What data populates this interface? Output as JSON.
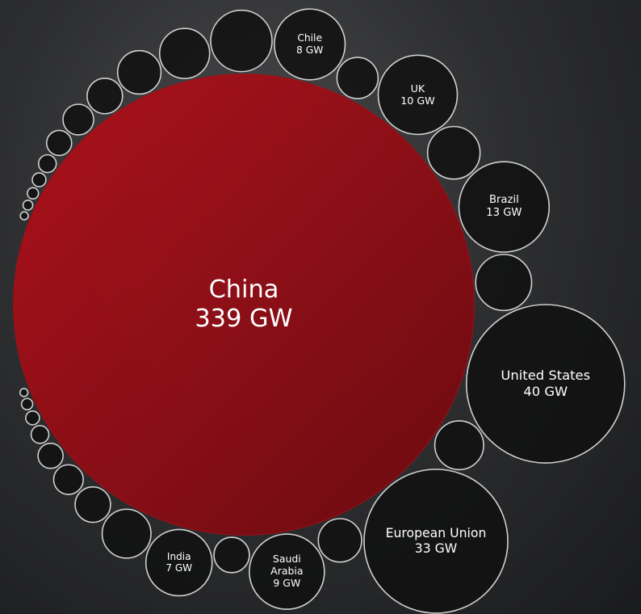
{
  "chart_data": {
    "type": "bubble",
    "categories": [
      "China",
      null,
      null,
      null,
      null,
      null,
      null,
      null,
      null,
      null,
      null,
      null,
      "Chile",
      null,
      "UK",
      null,
      "Brazil",
      null,
      "United States",
      null,
      "European Union",
      null,
      "Saudi Arabia",
      null,
      "India",
      null,
      null,
      null,
      null,
      null,
      null,
      null,
      null
    ],
    "values": [
      339,
      0.1,
      0.15,
      0.2,
      0.3,
      0.5,
      1,
      1.5,
      2,
      3,
      4,
      6,
      8,
      2.7,
      10,
      4.4,
      13,
      5,
      40,
      3.8,
      33,
      3,
      9,
      2,
      7,
      3.8,
      2,
      1.4,
      1,
      0.5,
      0.3,
      0.2,
      0.1
    ],
    "value_labels": [
      "339 GW",
      null,
      null,
      null,
      null,
      null,
      null,
      null,
      null,
      null,
      null,
      null,
      "8 GW",
      null,
      "10 GW",
      null,
      "13 GW",
      null,
      "40 GW",
      null,
      "33 GW",
      null,
      "9 GW",
      null,
      "7 GW",
      null,
      null,
      null,
      null,
      null,
      null,
      null,
      null
    ],
    "colors": {
      "highlight": "#a50e16",
      "bubble": "#111111",
      "stroke": "#d0d0d0"
    }
  }
}
